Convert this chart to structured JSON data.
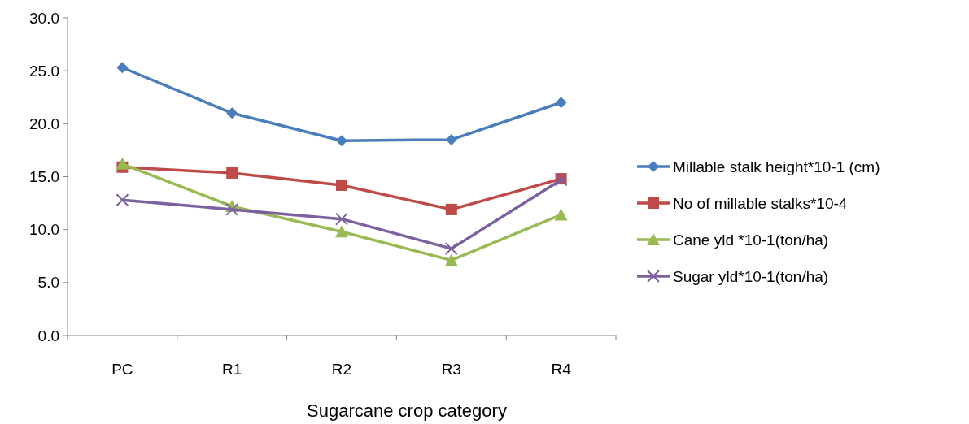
{
  "chart_data": {
    "type": "line",
    "xlabel": "Sugarcane crop category",
    "categories": [
      "PC",
      "R1",
      "R2",
      "R3",
      "R4"
    ],
    "ylim": [
      0,
      30
    ],
    "yticks": [
      {
        "value": 0,
        "label": "0.0"
      },
      {
        "value": 5,
        "label": "5.0"
      },
      {
        "value": 10,
        "label": "10.0"
      },
      {
        "value": 15,
        "label": "15.0"
      },
      {
        "value": 20,
        "label": "20.0"
      },
      {
        "value": 25,
        "label": "25.0"
      },
      {
        "value": 30,
        "label": "30.0"
      }
    ],
    "grid": false,
    "legend": "right",
    "series": [
      {
        "name": "Millable stalk height*10-1 (cm)",
        "color": "#4a7ebb",
        "marker": "diamond",
        "values": [
          25.3,
          21.0,
          18.4,
          18.5,
          22.0
        ]
      },
      {
        "name": "No of millable stalks*10-4",
        "color": "#be4b48",
        "marker": "square",
        "values": [
          15.9,
          15.35,
          14.2,
          11.9,
          14.8
        ]
      },
      {
        "name": "Cane yld *10-1(ton/ha)",
        "color": "#98b954",
        "marker": "triangle",
        "values": [
          16.2,
          12.2,
          9.8,
          7.1,
          11.4
        ]
      },
      {
        "name": "Sugar yld*10-1(ton/ha)",
        "color": "#7d60a0",
        "marker": "cross",
        "values": [
          12.8,
          11.9,
          11.0,
          8.2,
          14.7
        ]
      }
    ]
  }
}
